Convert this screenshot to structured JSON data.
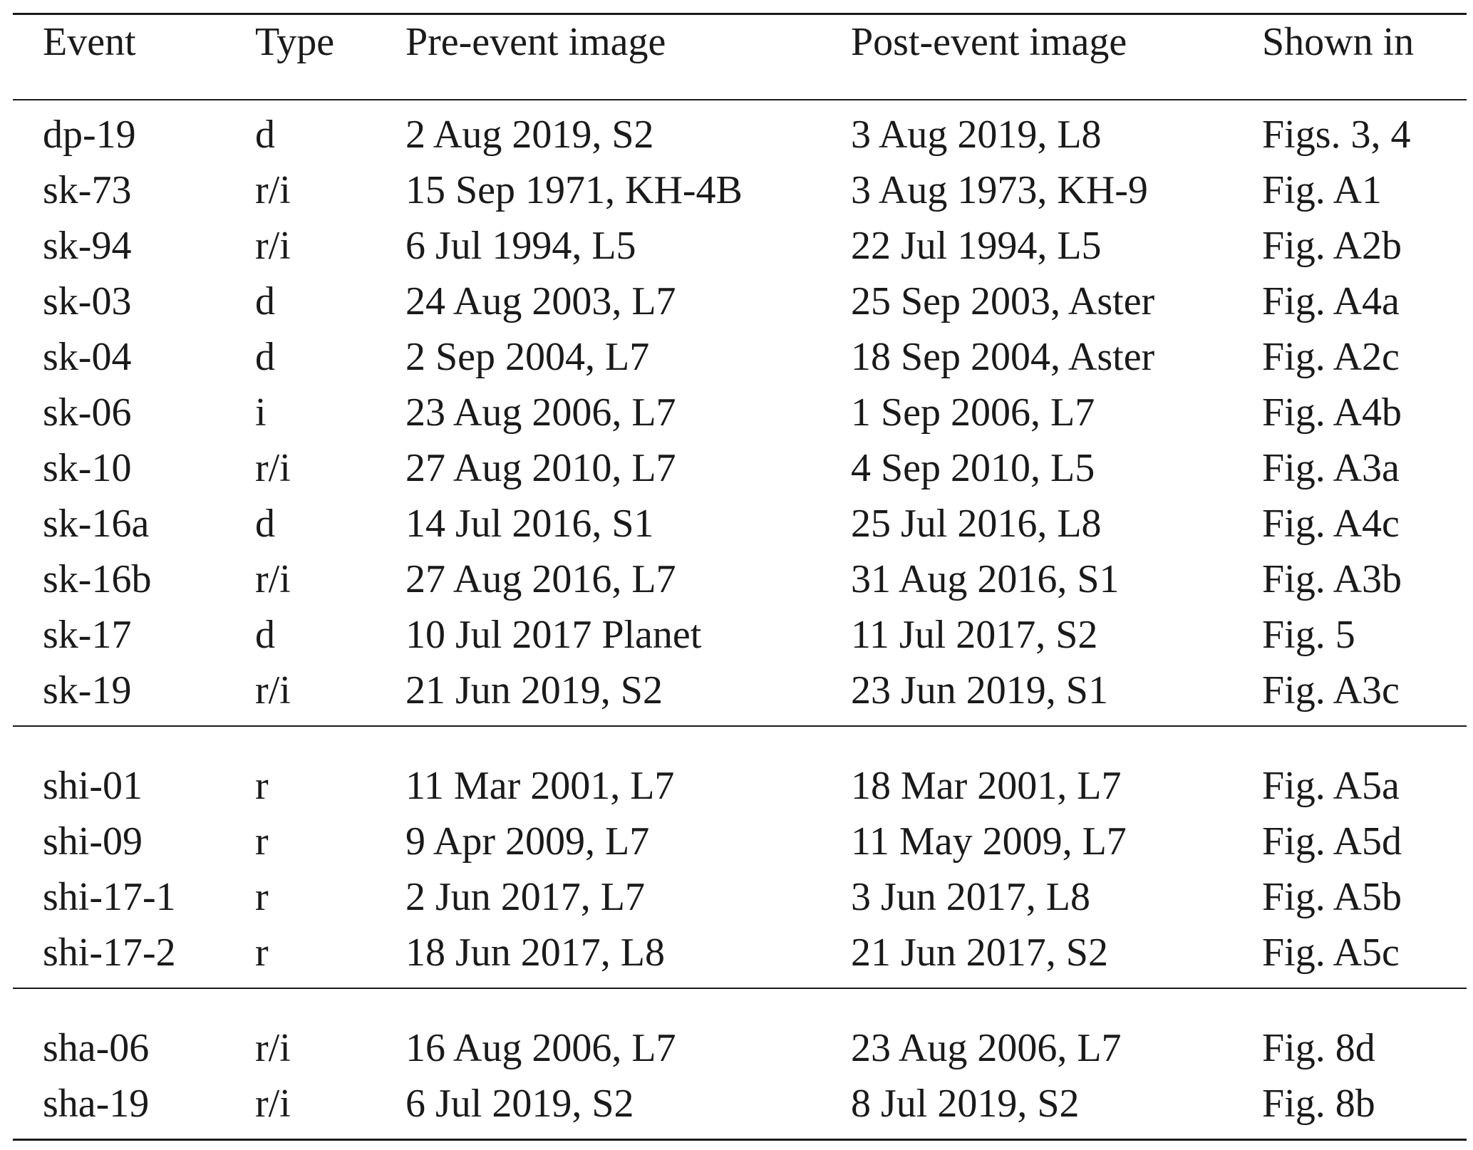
{
  "table": {
    "columns": [
      "Event",
      "Type",
      "Pre-event image",
      "Post-event image",
      "Shown in"
    ],
    "groups": [
      {
        "rows": [
          [
            "dp-19",
            "d",
            "2 Aug 2019, S2",
            "3 Aug 2019, L8",
            "Figs. 3, 4"
          ],
          [
            "sk-73",
            "r/i",
            "15 Sep 1971, KH-4B",
            "3 Aug 1973, KH-9",
            "Fig. A1"
          ],
          [
            "sk-94",
            "r/i",
            "6 Jul 1994, L5",
            "22 Jul 1994, L5",
            "Fig. A2b"
          ],
          [
            "sk-03",
            "d",
            "24 Aug 2003, L7",
            "25 Sep 2003, Aster",
            "Fig. A4a"
          ],
          [
            "sk-04",
            "d",
            "2 Sep 2004, L7",
            "18 Sep 2004, Aster",
            "Fig. A2c"
          ],
          [
            "sk-06",
            "i",
            "23 Aug 2006, L7",
            "1 Sep 2006, L7",
            "Fig. A4b"
          ],
          [
            "sk-10",
            "r/i",
            "27 Aug 2010, L7",
            "4 Sep 2010, L5",
            "Fig. A3a"
          ],
          [
            "sk-16a",
            "d",
            "14 Jul 2016, S1",
            "25 Jul 2016, L8",
            "Fig. A4c"
          ],
          [
            "sk-16b",
            "r/i",
            "27 Aug 2016, L7",
            "31 Aug 2016, S1",
            "Fig. A3b"
          ],
          [
            "sk-17",
            "d",
            "10 Jul 2017 Planet",
            "11 Jul 2017, S2",
            "Fig. 5"
          ],
          [
            "sk-19",
            "r/i",
            "21 Jun 2019, S2",
            "23 Jun 2019, S1",
            "Fig. A3c"
          ]
        ]
      },
      {
        "rows": [
          [
            "shi-01",
            "r",
            "11 Mar 2001, L7",
            "18 Mar 2001, L7",
            "Fig. A5a"
          ],
          [
            "shi-09",
            "r",
            "9 Apr 2009, L7",
            "11 May 2009, L7",
            "Fig. A5d"
          ],
          [
            "shi-17-1",
            "r",
            "2 Jun 2017, L7",
            "3 Jun 2017, L8",
            "Fig. A5b"
          ],
          [
            "shi-17-2",
            "r",
            "18 Jun 2017, L8",
            "21 Jun 2017, S2",
            "Fig. A5c"
          ]
        ]
      },
      {
        "rows": [
          [
            "sha-06",
            "r/i",
            "16 Aug 2006, L7",
            "23 Aug 2006, L7",
            "Fig. 8d"
          ],
          [
            "sha-19",
            "r/i",
            "6 Jul 2019, S2",
            "8 Jul 2019, S2",
            "Fig. 8b"
          ]
        ]
      }
    ]
  }
}
